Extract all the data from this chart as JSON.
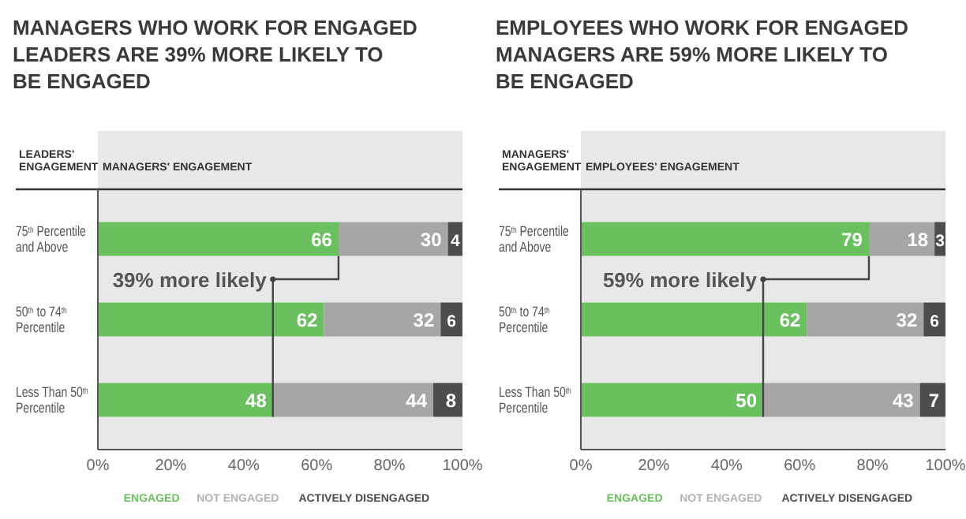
{
  "chart_data": [
    {
      "type": "bar",
      "orientation": "horizontal",
      "stacked": true,
      "title": "MANAGERS WHO WORK FOR ENGAGED LEADERS ARE 39% MORE LIKELY TO BE ENGAGED",
      "xlabel": "MANAGERS' ENGAGEMENT",
      "ylabel": "LEADERS' ENGAGEMENT",
      "categories": [
        "75$^{th}$ Percentile and Above",
        "50$^{th}$ to 74$^{th}$ Percentile",
        "Less Than 50$^{th}$ Percentile"
      ],
      "series": [
        {
          "name": "ENGAGED",
          "color": "#6abf5e",
          "values": [
            66,
            62,
            48
          ]
        },
        {
          "name": "NOT ENGAGED",
          "color": "#a6a6a6",
          "values": [
            30,
            32,
            44
          ]
        },
        {
          "name": "ACTIVELY DISENGAGED",
          "color": "#4d4d4d",
          "values": [
            4,
            6,
            8
          ]
        }
      ],
      "xlim": [
        0,
        100
      ],
      "xticks": [
        {
          "value": 0,
          "label": "0%"
        },
        {
          "value": 20,
          "label": "20%"
        },
        {
          "value": 40,
          "label": "40%"
        },
        {
          "value": 60,
          "label": "60%"
        },
        {
          "value": 80,
          "label": "80%"
        },
        {
          "value": 100,
          "label": "100%"
        }
      ],
      "data_labels": true,
      "legend": "bottom",
      "annotations": [
        "39% more likely"
      ]
    },
    {
      "type": "bar",
      "orientation": "horizontal",
      "stacked": true,
      "title": "EMPLOYEES WHO WORK FOR ENGAGED MANAGERS ARE 59% MORE LIKELY TO BE ENGAGED",
      "xlabel": "EMPLOYEES' ENGAGEMENT",
      "ylabel": "MANAGERS' ENGAGEMENT",
      "categories": [
        "75$^{th}$ Percentile and Above",
        "50$^{th}$ to 74$^{th}$ Percentile",
        "Less Than 50$^{th}$ Percentile"
      ],
      "series": [
        {
          "name": "ENGAGED",
          "color": "#6abf5e",
          "values": [
            79,
            62,
            50
          ]
        },
        {
          "name": "NOT ENGAGED",
          "color": "#a6a6a6",
          "values": [
            18,
            32,
            43
          ]
        },
        {
          "name": "ACTIVELY DISENGAGED",
          "color": "#4d4d4d",
          "values": [
            3,
            6,
            7
          ]
        }
      ],
      "xlim": [
        0,
        100
      ],
      "xticks": [
        {
          "value": 0,
          "label": "0%"
        },
        {
          "value": 20,
          "label": "20%"
        },
        {
          "value": 40,
          "label": "40%"
        },
        {
          "value": 60,
          "label": "60%"
        },
        {
          "value": 80,
          "label": "80%"
        },
        {
          "value": 100,
          "label": "100%"
        }
      ],
      "data_labels": true,
      "legend": "bottom",
      "annotations": [
        "59% more likely"
      ]
    }
  ]
}
